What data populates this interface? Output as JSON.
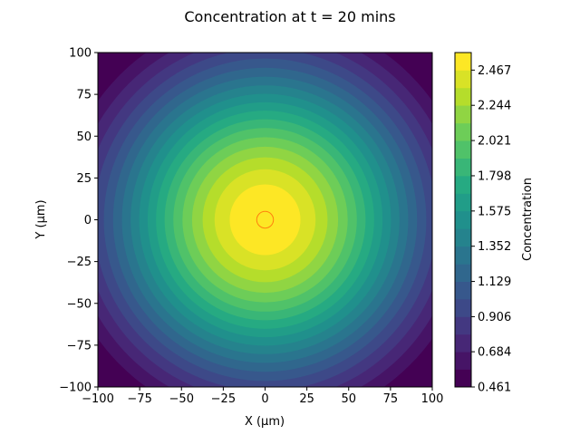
{
  "chart_data": {
    "type": "heatmap",
    "subtype": "filled-contour",
    "title": "Concentration at t = 20 mins",
    "xlabel": "X (μm)",
    "ylabel": "Y (μm)",
    "xlim": [
      -100,
      100
    ],
    "ylim": [
      -100,
      100
    ],
    "xticks": [
      -100,
      -75,
      -50,
      -25,
      0,
      25,
      50,
      75,
      100
    ],
    "yticks": [
      -100,
      -75,
      -50,
      -25,
      0,
      25,
      50,
      75,
      100
    ],
    "xtick_labels": [
      "−100",
      "−75",
      "−50",
      "−25",
      "0",
      "25",
      "50",
      "75",
      "100"
    ],
    "ytick_labels": [
      "−100",
      "−75",
      "−50",
      "−25",
      "0",
      "25",
      "50",
      "75",
      "100"
    ],
    "colormap": "viridis",
    "center": [
      0,
      0
    ],
    "peak_value": 2.58,
    "radial_falloff_scale": 100,
    "min_value": 0.461,
    "levels": [
      0.461,
      0.573,
      0.684,
      0.795,
      0.906,
      1.018,
      1.129,
      1.24,
      1.352,
      1.463,
      1.575,
      1.686,
      1.798,
      1.909,
      2.021,
      2.132,
      2.244,
      2.355,
      2.467,
      2.578
    ],
    "colorbar": {
      "label": "Concentration",
      "tick_values": [
        0.461,
        0.684,
        0.906,
        1.129,
        1.352,
        1.575,
        1.798,
        2.021,
        2.244,
        2.467
      ],
      "tick_labels": [
        "0.461",
        "0.684",
        "0.906",
        "1.129",
        "1.352",
        "1.575",
        "1.798",
        "2.021",
        "2.244",
        "2.467"
      ]
    },
    "marker": {
      "shape": "circle",
      "x": 0,
      "y": 0,
      "radius": 5,
      "color": "#ff7f0e"
    },
    "grid": false,
    "legend": "none"
  }
}
